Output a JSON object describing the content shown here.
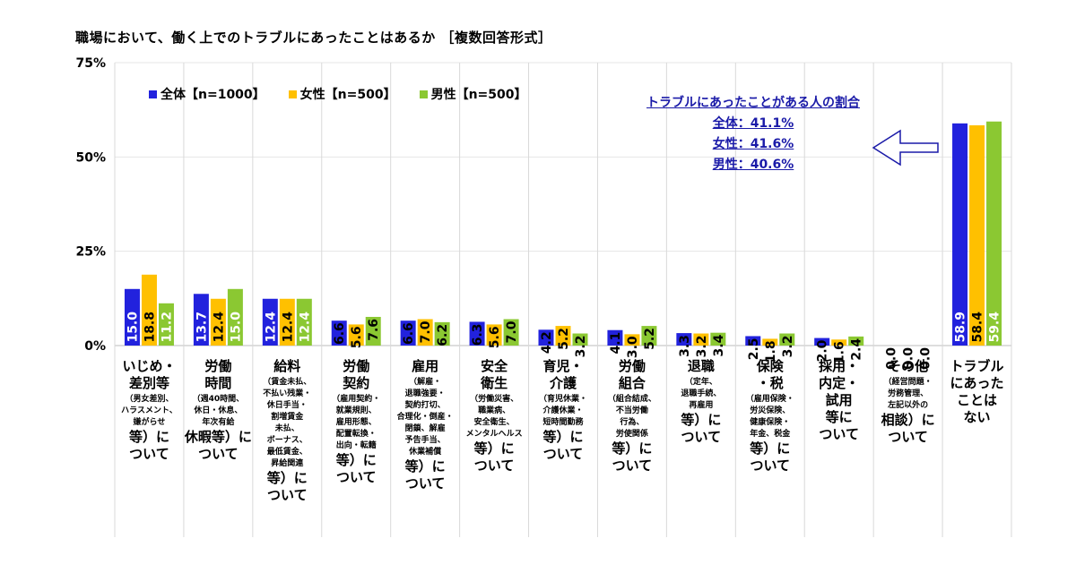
{
  "title": "職場において、働く上でのトラブルにあったことはあるか ［複数回答形式］",
  "legend": [
    {
      "label": "全体【n=1000】",
      "color": "#2222dd"
    },
    {
      "label": "女性【n=500】",
      "color": "#ffc000"
    },
    {
      "label": "男性【n=500】",
      "color": "#8bc832"
    }
  ],
  "annotation": {
    "heading": "トラブルにあったことがある人の割合",
    "lines": [
      "全体：41.1%",
      "女性：41.6%",
      "男性：40.6%"
    ],
    "arrow": "left-arrow-icon"
  },
  "categories": [
    {
      "title": "いじめ・\n差別等",
      "note": "（男女差別、\nハラスメント、\n嫌がらせ",
      "tail": "等）に\nついて"
    },
    {
      "title": "労働\n時間",
      "note": "（週40時間、\n休日・休息、\n年次有給",
      "tail": "休暇等）に\nついて"
    },
    {
      "title": "給料",
      "note": "（賃金未払、\n不払い残業・\n休日手当・\n割増賃金\n未払、\nボーナス、\n最低賃金、\n昇給関連",
      "tail": "等）に\nついて"
    },
    {
      "title": "労働\n契約",
      "note": "（雇用契約・\n就業規則、\n雇用形態、\n配置転換・\n出向・転籍",
      "tail": "等）に\nついて"
    },
    {
      "title": "雇用",
      "note": "（解雇・\n退職強要・\n契約打切、\n合理化・倒産・\n閉鎖、解雇\n予告手当、\n休業補償",
      "tail": "等）に\nついて"
    },
    {
      "title": "安全\n衛生",
      "note": "（労働災害、\n職業病、\n安全衛生、\nメンタルヘルス",
      "tail": "等）に\nついて"
    },
    {
      "title": "育児・\n介護",
      "note": "（育児休業・\n介護休業・\n短時間勤務",
      "tail": "等）に\nついて"
    },
    {
      "title": "労働\n組合",
      "note": "（組合結成、\n不当労働\n行為、\n労使関係",
      "tail": "等）に\nついて"
    },
    {
      "title": "退職",
      "note": "（定年、\n退職手続、\n再雇用",
      "tail": "等）に\nついて"
    },
    {
      "title": "保険\n・税",
      "note": "（雇用保険・\n労災保険、\n健康保険・\n年金、税金",
      "tail": "等）に\nついて"
    },
    {
      "title": "採用・\n内定・\n試用\n等に\nついて",
      "note": "",
      "tail": ""
    },
    {
      "title": "その他",
      "note": "（経営問題・\n労務管理、\n左記以外の",
      "tail": "相談）に\nついて"
    },
    {
      "title": "トラブル\nにあった\nことは\nない",
      "note": "",
      "tail": ""
    }
  ],
  "chart_data": {
    "type": "bar",
    "title": "職場において、働く上でのトラブルにあったことはあるか ［複数回答形式］",
    "ylim": [
      0,
      75
    ],
    "yticks": [
      0,
      25,
      50,
      75
    ],
    "ytick_labels": [
      "0%",
      "25%",
      "50%",
      "75%"
    ],
    "legend_position": "top-left",
    "grid": "vertical category separators",
    "series": [
      {
        "name": "全体【n=1000】",
        "color": "#2222dd",
        "values": [
          15.0,
          13.7,
          12.4,
          6.6,
          6.6,
          6.3,
          4.2,
          4.1,
          3.3,
          2.5,
          2.0,
          0.0,
          58.9
        ],
        "labels": [
          "15.0",
          "13.7",
          "12.4",
          "6.6",
          "6.6",
          "6.3",
          "4.2",
          "4.1",
          "3.3",
          "2.5",
          "2.0",
          "0.0",
          "58.9"
        ]
      },
      {
        "name": "女性【n=500】",
        "color": "#ffc000",
        "values": [
          18.8,
          12.4,
          12.4,
          5.6,
          7.0,
          5.6,
          5.2,
          3.0,
          3.2,
          1.8,
          1.6,
          0.0,
          58.4
        ],
        "labels": [
          "18.8",
          "12.4",
          "12.4",
          "5.6",
          "7.0",
          "5.6",
          "5.2",
          "3.0",
          "3.2",
          "1.8",
          "1.6",
          "0.0",
          "58.4"
        ]
      },
      {
        "name": "男性【n=500】",
        "color": "#8bc832",
        "values": [
          11.2,
          15.0,
          12.4,
          7.6,
          6.2,
          7.0,
          3.2,
          5.2,
          3.4,
          3.2,
          2.4,
          0.0,
          59.4
        ],
        "labels": [
          "11.2",
          "15.0",
          "12.4",
          "7.6",
          "6.2",
          "7.0",
          "3.2",
          "5.2",
          "3.4",
          "3.2",
          "2.4",
          "0.0",
          "59.4"
        ]
      }
    ]
  }
}
